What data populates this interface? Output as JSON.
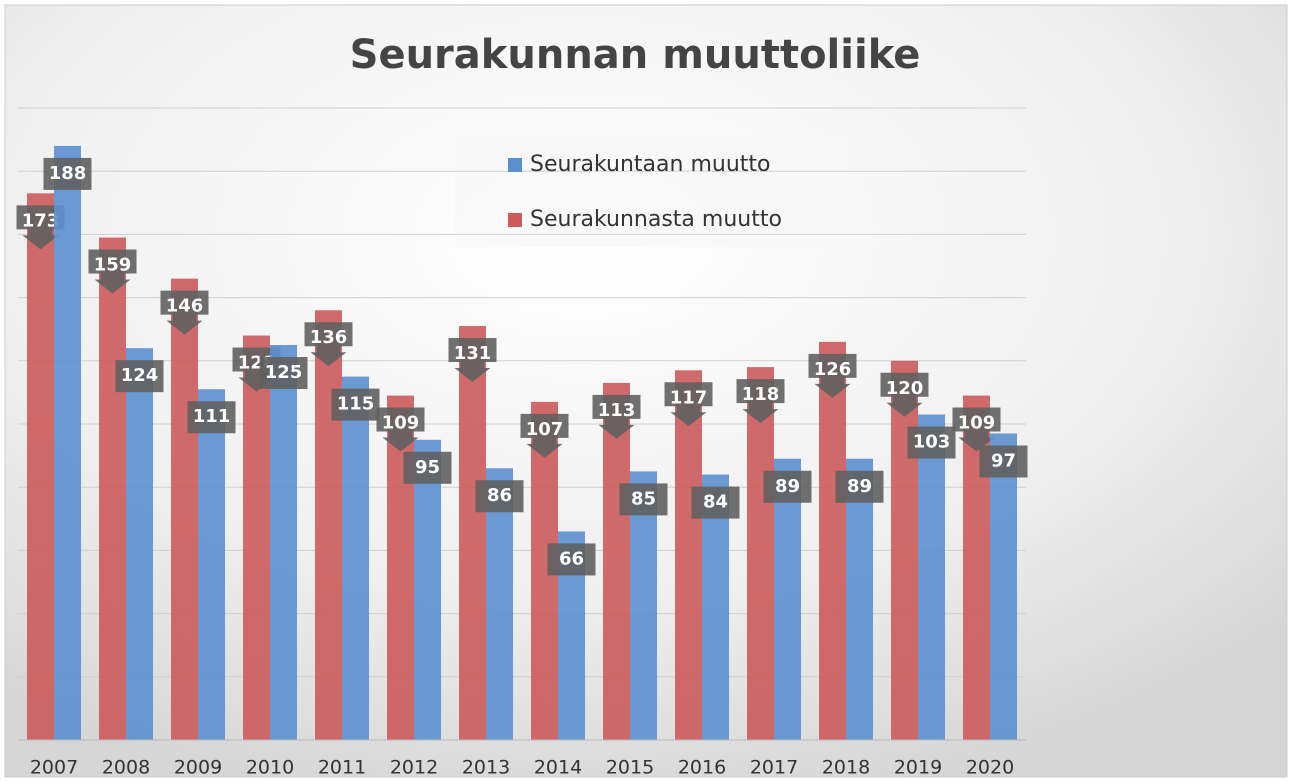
{
  "chart_data": {
    "type": "bar",
    "title": "Seurakunnan muuttoliike",
    "categories": [
      "2007",
      "2008",
      "2009",
      "2010",
      "2011",
      "2012",
      "2013",
      "2014",
      "2015",
      "2016",
      "2017",
      "2018",
      "2019",
      "2020"
    ],
    "series": [
      {
        "name": "Seurakuntaan muutto",
        "color": "#5b8fd0",
        "values": [
          188,
          124,
          111,
          125,
          115,
          95,
          86,
          66,
          85,
          84,
          89,
          89,
          103,
          97
        ]
      },
      {
        "name": "Seurakunnasta muutto",
        "color": "#cc5a5a",
        "values": [
          173,
          159,
          146,
          128,
          136,
          109,
          131,
          107,
          113,
          117,
          118,
          126,
          120,
          109
        ]
      }
    ],
    "ylim": [
      0,
      200
    ],
    "yticks": [
      0,
      20,
      40,
      60,
      80,
      100,
      120,
      140,
      160,
      180,
      200
    ],
    "grid": true
  }
}
